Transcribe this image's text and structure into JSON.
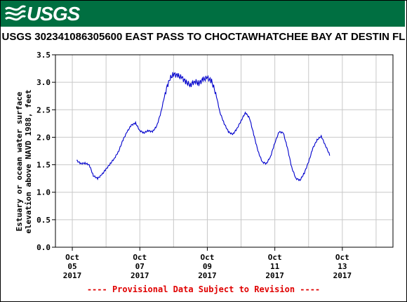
{
  "header": {
    "logo_text": "USGS",
    "logo_icon": "usgs-wave-logo-icon",
    "banner_color": "#006f41"
  },
  "footnote": "---- Provisional Data Subject to Revision ----",
  "chart_data": {
    "type": "line",
    "title": "USGS 302341086305600 EAST PASS TO CHOCTAWHATCHEE BAY AT DESTIN FL",
    "ylabel_lines": [
      "Estuary or ocean water surface",
      "elevation above NAVD 1988, feet"
    ],
    "xlabel": "",
    "ylim": [
      0.0,
      3.5
    ],
    "yticks": [
      "0.0",
      "0.5",
      "1.0",
      "1.5",
      "2.0",
      "2.5",
      "3.0",
      "3.5"
    ],
    "xlim": [
      "2017-10-04T12:00",
      "2017-10-14T12:00"
    ],
    "xticks": [
      {
        "date": "2017-10-05",
        "lines": [
          "Oct",
          "05",
          "2017"
        ]
      },
      {
        "date": "2017-10-07",
        "lines": [
          "Oct",
          "07",
          "2017"
        ]
      },
      {
        "date": "2017-10-09",
        "lines": [
          "Oct",
          "09",
          "2017"
        ]
      },
      {
        "date": "2017-10-11",
        "lines": [
          "Oct",
          "11",
          "2017"
        ]
      },
      {
        "date": "2017-10-13",
        "lines": [
          "Oct",
          "13",
          "2017"
        ]
      }
    ],
    "grid": true,
    "line_color": "#0000cc",
    "series": [
      {
        "x": [
          "2017-10-05T03:00",
          "2017-10-05T06:00",
          "2017-10-05T09:00",
          "2017-10-05T12:00",
          "2017-10-05T15:00",
          "2017-10-05T18:00",
          "2017-10-05T21:00",
          "2017-10-06T00:00",
          "2017-10-06T03:00",
          "2017-10-06T06:00",
          "2017-10-06T09:00",
          "2017-10-06T12:00",
          "2017-10-06T15:00",
          "2017-10-06T18:00",
          "2017-10-06T21:00",
          "2017-10-07T00:00",
          "2017-10-07T03:00",
          "2017-10-07T06:00",
          "2017-10-07T09:00",
          "2017-10-07T12:00",
          "2017-10-07T15:00",
          "2017-10-07T18:00",
          "2017-10-07T21:00",
          "2017-10-08T00:00",
          "2017-10-08T03:00",
          "2017-10-08T06:00",
          "2017-10-08T09:00",
          "2017-10-08T12:00",
          "2017-10-08T15:00",
          "2017-10-08T18:00",
          "2017-10-08T21:00",
          "2017-10-09T00:00",
          "2017-10-09T03:00",
          "2017-10-09T06:00",
          "2017-10-09T09:00",
          "2017-10-09T12:00",
          "2017-10-09T15:00",
          "2017-10-09T18:00",
          "2017-10-09T21:00",
          "2017-10-10T00:00",
          "2017-10-10T03:00",
          "2017-10-10T06:00",
          "2017-10-10T09:00",
          "2017-10-10T12:00",
          "2017-10-10T15:00",
          "2017-10-10T18:00",
          "2017-10-10T21:00",
          "2017-10-11T00:00",
          "2017-10-11T03:00",
          "2017-10-11T06:00",
          "2017-10-11T09:00",
          "2017-10-11T12:00",
          "2017-10-11T15:00",
          "2017-10-11T18:00",
          "2017-10-11T21:00",
          "2017-10-12T00:00",
          "2017-10-12T03:00",
          "2017-10-12T06:00",
          "2017-10-12T09:00",
          "2017-10-12T12:00",
          "2017-10-12T15:00",
          "2017-10-12T18:00",
          "2017-10-12T21:00",
          "2017-10-13T00:00",
          "2017-10-13T03:00",
          "2017-10-13T06:00"
        ],
        "y": [
          1.58,
          1.52,
          1.53,
          1.5,
          1.3,
          1.25,
          1.32,
          1.42,
          1.52,
          1.62,
          1.75,
          1.95,
          2.1,
          2.22,
          2.26,
          2.12,
          2.08,
          2.12,
          2.1,
          2.2,
          2.45,
          2.8,
          3.05,
          3.15,
          3.12,
          3.08,
          3.0,
          2.95,
          3.02,
          2.98,
          3.05,
          3.08,
          3.02,
          2.8,
          2.45,
          2.25,
          2.1,
          2.05,
          2.15,
          2.3,
          2.45,
          2.35,
          2.05,
          1.75,
          1.55,
          1.52,
          1.65,
          1.9,
          2.1,
          2.08,
          1.8,
          1.45,
          1.25,
          1.22,
          1.35,
          1.55,
          1.8,
          1.95,
          2.02,
          1.85,
          1.68,
          1.62,
          1.6,
          1.6,
          1.6,
          1.6
        ]
      }
    ]
  }
}
